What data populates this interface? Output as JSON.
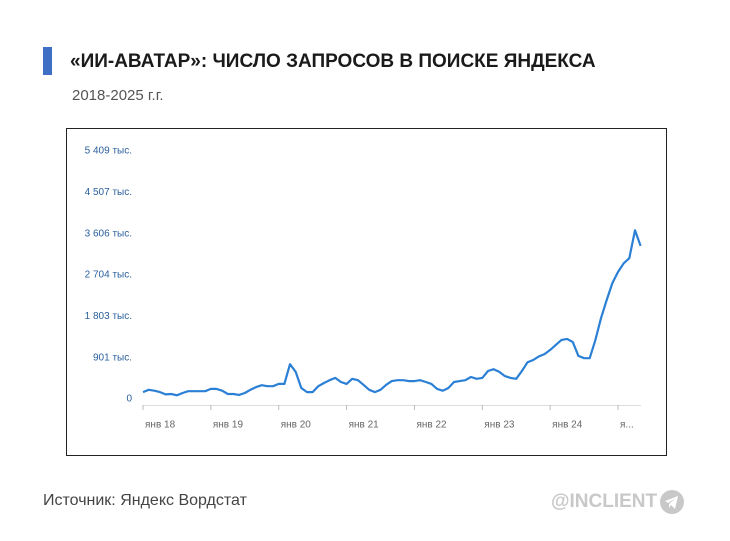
{
  "chart_data": {
    "type": "line",
    "title": "«ИИ-АВАТАР»: ЧИСЛО ЗАПРОСОВ В ПОИСКЕ ЯНДЕКСА",
    "subtitle": "2018-2025 г.г.",
    "source": "Источник: Яндекс Вордстат",
    "brand": "@INCLIENT",
    "color": "#2b80d6",
    "ylim": [
      0,
      5409
    ],
    "yticks": [
      {
        "value": 0,
        "label": "0"
      },
      {
        "value": 901,
        "label": "901 тыс."
      },
      {
        "value": 1803,
        "label": "1 803 тыс."
      },
      {
        "value": 2704,
        "label": "2 704 тыс."
      },
      {
        "value": 3606,
        "label": "3 606 тыс."
      },
      {
        "value": 4507,
        "label": "4 507 тыс."
      },
      {
        "value": 5409,
        "label": "5 409 тыс."
      }
    ],
    "categories": [
      "янв 18",
      null,
      null,
      null,
      null,
      null,
      null,
      null,
      null,
      null,
      null,
      null,
      "янв 19",
      null,
      null,
      null,
      null,
      null,
      null,
      null,
      null,
      null,
      null,
      null,
      "янв 20",
      null,
      null,
      null,
      null,
      null,
      null,
      null,
      null,
      null,
      null,
      null,
      "янв 21",
      null,
      null,
      null,
      null,
      null,
      null,
      null,
      null,
      null,
      null,
      null,
      "янв 22",
      null,
      null,
      null,
      null,
      null,
      null,
      null,
      null,
      null,
      null,
      null,
      "янв 23",
      null,
      null,
      null,
      null,
      null,
      null,
      null,
      null,
      null,
      null,
      null,
      "янв 24",
      null,
      null,
      null,
      null,
      null,
      null,
      null,
      null,
      null,
      null,
      null,
      "я...",
      null,
      null,
      null,
      null
    ],
    "values": [
      150,
      200,
      180,
      150,
      100,
      110,
      80,
      130,
      170,
      170,
      170,
      170,
      220,
      220,
      180,
      110,
      110,
      90,
      130,
      200,
      260,
      300,
      280,
      280,
      330,
      330,
      760,
      590,
      240,
      150,
      150,
      280,
      350,
      410,
      460,
      370,
      330,
      440,
      410,
      310,
      200,
      150,
      200,
      310,
      390,
      410,
      410,
      390,
      390,
      410,
      370,
      330,
      220,
      180,
      240,
      370,
      390,
      410,
      480,
      440,
      460,
      610,
      650,
      590,
      500,
      460,
      440,
      610,
      800,
      850,
      930,
      980,
      1070,
      1180,
      1290,
      1310,
      1240,
      940,
      890,
      890,
      1290,
      1770,
      2160,
      2530,
      2770,
      2960,
      3070,
      3680,
      3340
    ]
  }
}
